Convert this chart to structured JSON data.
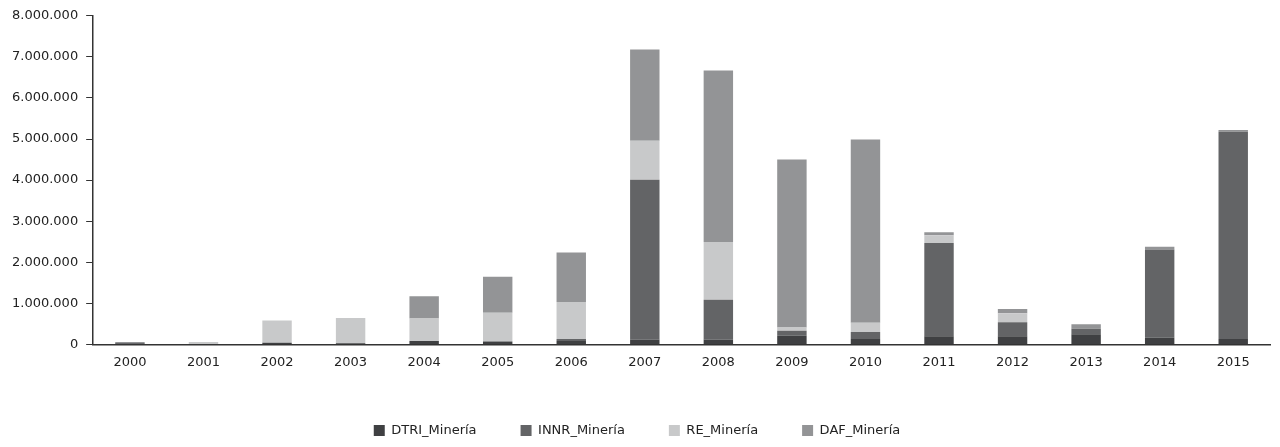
{
  "chart_data": {
    "type": "bar",
    "stacked": true,
    "categories": [
      "2000",
      "2001",
      "2002",
      "2003",
      "2004",
      "2005",
      "2006",
      "2007",
      "2008",
      "2009",
      "2010",
      "2011",
      "2012",
      "2013",
      "2014",
      "2015"
    ],
    "series": [
      {
        "name": "DTRI_Minería",
        "color": "#3f4042",
        "values": [
          30000,
          10000,
          40000,
          30000,
          80000,
          70000,
          80000,
          120000,
          120000,
          210000,
          130000,
          200000,
          200000,
          250000,
          160000,
          130000
        ]
      },
      {
        "name": "INNR_Minería",
        "color": "#636466",
        "values": [
          0,
          0,
          0,
          0,
          0,
          0,
          50000,
          3890000,
          970000,
          120000,
          170000,
          2270000,
          340000,
          130000,
          2150000,
          5050000
        ]
      },
      {
        "name": "RE_Minería",
        "color": "#c8c9ca",
        "values": [
          0,
          50000,
          540000,
          610000,
          550000,
          700000,
          900000,
          950000,
          1400000,
          80000,
          230000,
          190000,
          220000,
          null,
          null,
          0
        ]
      },
      {
        "name": "DAF_Minería",
        "color": "#939496",
        "values": [
          30000,
          0,
          0,
          0,
          540000,
          880000,
          1210000,
          2220000,
          4180000,
          4090000,
          4460000,
          70000,
          100000,
          110000,
          70000,
          40000
        ]
      }
    ],
    "ylim": [
      0,
      8000000
    ],
    "yticks": [
      {
        "value": 0,
        "label": "0"
      },
      {
        "value": 1000000,
        "label": "1.000.000"
      },
      {
        "value": 2000000,
        "label": "2.000.000"
      },
      {
        "value": 3000000,
        "label": "3.000.000"
      },
      {
        "value": 4000000,
        "label": "4.000.000"
      },
      {
        "value": 5000000,
        "label": "5.000.000"
      },
      {
        "value": 6000000,
        "label": "6.000.000"
      },
      {
        "value": 7000000,
        "label": "7.000.000"
      },
      {
        "value": 8000000,
        "label": "8.000.000"
      }
    ],
    "legend": "bottom"
  }
}
